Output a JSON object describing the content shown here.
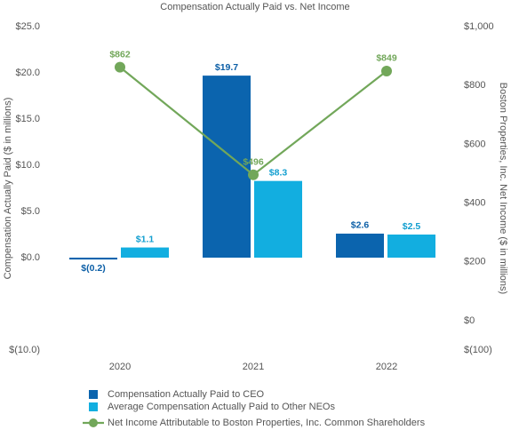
{
  "chart_data": {
    "type": "bar",
    "title": "Compensation Actually Paid vs. Net Income",
    "y_label": "Compensation Actually Paid ($ in millions)",
    "y2_label": "Boston Properties, Inc. Net Income ($ in millions)",
    "categories": [
      "2020",
      "2021",
      "2022"
    ],
    "series": [
      {
        "name": "Compensation Actually Paid to CEO",
        "color": "#0b64ae",
        "label_color": "#0b5ea6",
        "values": [
          -0.2,
          19.7,
          2.6
        ],
        "value_labels": [
          "$(0.2)",
          "$19.7",
          "$2.6"
        ]
      },
      {
        "name": "Average Compensation Actually Paid to Other NEOs",
        "color": "#12aee0",
        "label_color": "#139fd0",
        "values": [
          1.1,
          8.3,
          2.5
        ],
        "value_labels": [
          "$1.1",
          "$8.3",
          "$2.5"
        ]
      },
      {
        "name": "Net Income Attributable to Boston Properties, Inc. Common Shareholders",
        "type": "line",
        "axis": "y2",
        "color": "#72a75a",
        "values": [
          862,
          496,
          849
        ],
        "value_labels": [
          "$862",
          "$496",
          "$849"
        ]
      }
    ],
    "ylim": [
      -10,
      25
    ],
    "yticks": [
      {
        "value": 25,
        "label": "$25.0"
      },
      {
        "value": 20,
        "label": "$20.0"
      },
      {
        "value": 15,
        "label": "$15.0"
      },
      {
        "value": 10,
        "label": "$10.0"
      },
      {
        "value": 5,
        "label": "$5.0"
      },
      {
        "value": 0,
        "label": "$0.0"
      },
      {
        "value": -10,
        "label": "$(10.0)"
      }
    ],
    "y2lim": [
      -100,
      1000
    ],
    "y2ticks": [
      {
        "value": 1000,
        "label": "$1,000"
      },
      {
        "value": 800,
        "label": "$800"
      },
      {
        "value": 600,
        "label": "$600"
      },
      {
        "value": 400,
        "label": "$400"
      },
      {
        "value": 200,
        "label": "$200"
      },
      {
        "value": 0,
        "label": "$0"
      },
      {
        "value": -100,
        "label": "$(100)"
      }
    ],
    "grid": false
  }
}
